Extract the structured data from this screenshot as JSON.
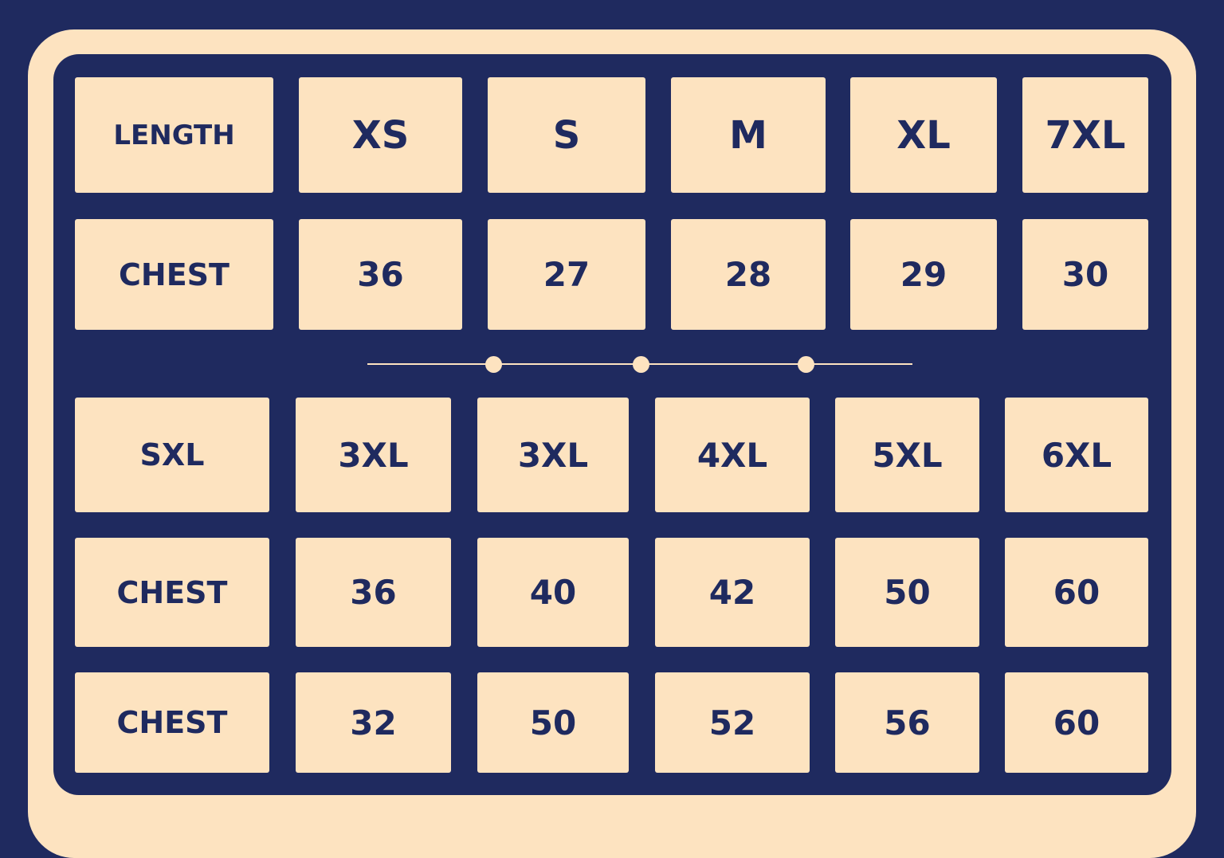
{
  "colors": {
    "background": "#1f2a5f",
    "cell": "#fde3c0",
    "text": "#1f2a5f"
  },
  "top_table": {
    "rows": [
      [
        "LENGTH",
        "XS",
        "S",
        "M",
        "XL",
        "7XL"
      ],
      [
        "CHEST",
        "36",
        "27",
        "28",
        "29",
        "30"
      ]
    ]
  },
  "divider": {
    "dots": 3
  },
  "bottom_table": {
    "rows": [
      [
        "SXL",
        "3XL",
        "3XL",
        "4XL",
        "5XL",
        "6XL"
      ],
      [
        "CHEST",
        "36",
        "40",
        "42",
        "50",
        "60"
      ],
      [
        "CHEST",
        "32",
        "50",
        "52",
        "56",
        "60"
      ]
    ]
  }
}
